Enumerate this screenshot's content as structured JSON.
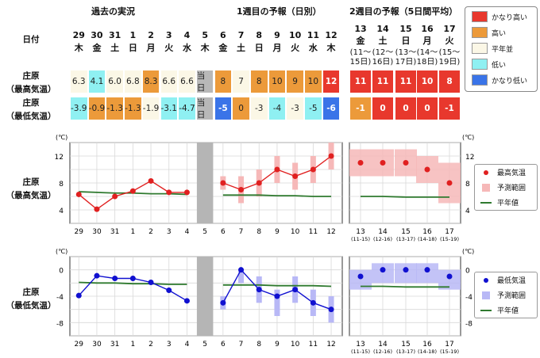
{
  "section_titles": {
    "past": "過去の実況",
    "week1": "1週目の予報（日別）",
    "week2": "2週目の予報（5日間平均）"
  },
  "row_labels": {
    "date": "日付",
    "high_l1": "庄原",
    "high_l2": "（最高気温）",
    "low_l1": "庄原",
    "low_l2": "（最低気温）"
  },
  "days": [
    {
      "d": "29",
      "w": "木"
    },
    {
      "d": "30",
      "w": "金"
    },
    {
      "d": "31",
      "w": "土"
    },
    {
      "d": "1",
      "w": "日"
    },
    {
      "d": "2",
      "w": "月"
    },
    {
      "d": "3",
      "w": "火"
    },
    {
      "d": "4",
      "w": "水"
    },
    {
      "d": "5",
      "w": "木"
    },
    {
      "d": "6",
      "w": "金"
    },
    {
      "d": "7",
      "w": "土"
    },
    {
      "d": "8",
      "w": "日"
    },
    {
      "d": "9",
      "w": "月"
    },
    {
      "d": "10",
      "w": "火"
    },
    {
      "d": "11",
      "w": "水"
    },
    {
      "d": "12",
      "w": "木"
    }
  ],
  "week2_days": [
    {
      "d": "13",
      "w": "金",
      "r1": "(11〜",
      "r2": "15日)"
    },
    {
      "d": "14",
      "w": "土",
      "r1": "(12〜",
      "r2": "16日)"
    },
    {
      "d": "15",
      "w": "日",
      "r1": "(13〜",
      "r2": "17日)"
    },
    {
      "d": "16",
      "w": "月",
      "r1": "(14〜",
      "r2": "18日)"
    },
    {
      "d": "17",
      "w": "火",
      "r1": "(15〜",
      "r2": "19日)"
    }
  ],
  "high_cells": [
    {
      "t": "6.3",
      "c": "normal"
    },
    {
      "t": "4.1",
      "c": "low"
    },
    {
      "t": "6.0",
      "c": "normal"
    },
    {
      "t": "6.8",
      "c": "normal"
    },
    {
      "t": "8.3",
      "c": "high"
    },
    {
      "t": "6.6",
      "c": "normal"
    },
    {
      "t": "6.6",
      "c": "normal"
    },
    {
      "t": "当日",
      "c": "gray"
    },
    {
      "t": "8",
      "c": "high"
    },
    {
      "t": "7",
      "c": "normal"
    },
    {
      "t": "8",
      "c": "high"
    },
    {
      "t": "10",
      "c": "high"
    },
    {
      "t": "9",
      "c": "high"
    },
    {
      "t": "10",
      "c": "high"
    },
    {
      "t": "12",
      "c": "vhigh"
    }
  ],
  "low_cells": [
    {
      "t": "-3.9",
      "c": "low"
    },
    {
      "t": "-0.9",
      "c": "high"
    },
    {
      "t": "-1.3",
      "c": "high"
    },
    {
      "t": "-1.3",
      "c": "high"
    },
    {
      "t": "-1.9",
      "c": "normal"
    },
    {
      "t": "-3.1",
      "c": "low"
    },
    {
      "t": "-4.7",
      "c": "low"
    },
    {
      "t": "当日",
      "c": "gray"
    },
    {
      "t": "-5",
      "c": "vlow"
    },
    {
      "t": "0",
      "c": "high"
    },
    {
      "t": "-3",
      "c": "normal"
    },
    {
      "t": "-4",
      "c": "low"
    },
    {
      "t": "-3",
      "c": "normal"
    },
    {
      "t": "-5",
      "c": "low"
    },
    {
      "t": "-6",
      "c": "vlow"
    }
  ],
  "high_w2": [
    {
      "t": "11",
      "c": "vhigh"
    },
    {
      "t": "11",
      "c": "vhigh"
    },
    {
      "t": "11",
      "c": "vhigh"
    },
    {
      "t": "10",
      "c": "vhigh"
    },
    {
      "t": "8",
      "c": "vhigh"
    }
  ],
  "low_w2": [
    {
      "t": "-1",
      "c": "high"
    },
    {
      "t": "0",
      "c": "vhigh"
    },
    {
      "t": "0",
      "c": "vhigh"
    },
    {
      "t": "0",
      "c": "vhigh"
    },
    {
      "t": "-1",
      "c": "vhigh"
    }
  ],
  "colors": {
    "vhigh": "#e8382d",
    "high": "#ec9a3a",
    "normal": "#fbf7e6",
    "low": "#8ff0f2",
    "vlow": "#3a74e8",
    "gray": "#b8b8b8",
    "red": "#e02020",
    "blue": "#1010d0",
    "green": "#2f7a2f",
    "pink": "#f6b8b8",
    "lav": "#b8b8f6"
  },
  "category_legend": [
    {
      "label": "かなり高い",
      "c": "vhigh"
    },
    {
      "label": "高い",
      "c": "high"
    },
    {
      "label": "平年並",
      "c": "normal"
    },
    {
      "label": "低い",
      "c": "low"
    },
    {
      "label": "かなり低い",
      "c": "vlow"
    }
  ],
  "chart_data": [
    {
      "type": "line",
      "unit": "(℃)",
      "categories": [
        "29",
        "30",
        "31",
        "1",
        "2",
        "3",
        "4",
        "5",
        "6",
        "7",
        "8",
        "9",
        "10",
        "11",
        "12"
      ],
      "ylim": [
        2,
        14
      ],
      "yticks": [
        4,
        8,
        12
      ],
      "series": [
        {
          "name": "最高気温",
          "values": [
            6.3,
            4.1,
            6.0,
            6.8,
            8.3,
            6.6,
            6.6,
            null,
            8,
            7,
            8,
            10,
            9,
            10,
            12
          ]
        },
        {
          "name": "平年値",
          "values": [
            6.7,
            6.6,
            6.5,
            6.5,
            6.4,
            6.4,
            6.3,
            null,
            6.2,
            6.2,
            6.2,
            6.1,
            6.1,
            6.0,
            6.0
          ]
        }
      ],
      "ranges": [
        null,
        null,
        null,
        null,
        null,
        null,
        null,
        null,
        [
          7,
          9
        ],
        [
          5,
          9
        ],
        [
          6,
          10
        ],
        [
          8,
          12
        ],
        [
          7,
          11
        ],
        [
          8,
          12
        ],
        [
          10,
          14
        ]
      ],
      "week2": {
        "categories": [
          "13",
          "14",
          "15",
          "16",
          "17"
        ],
        "ranges": [
          "(11-15)",
          "(12-16)",
          "(13-17)",
          "(14-18)",
          "(15-19)"
        ],
        "values": [
          11,
          11,
          11,
          10,
          8
        ],
        "bands": [
          [
            9,
            13
          ],
          [
            9,
            13
          ],
          [
            9,
            13
          ],
          [
            8,
            12
          ],
          [
            5,
            11
          ]
        ],
        "normal": [
          6.0,
          6.0,
          5.9,
          5.9,
          5.9
        ]
      },
      "legend": [
        "最高気温",
        "予測範囲",
        "平年値"
      ]
    },
    {
      "type": "line",
      "unit": "(℃)",
      "categories": [
        "29",
        "30",
        "31",
        "1",
        "2",
        "3",
        "4",
        "5",
        "6",
        "7",
        "8",
        "9",
        "10",
        "11",
        "12"
      ],
      "ylim": [
        -10,
        2
      ],
      "yticks": [
        0,
        -4,
        -8
      ],
      "series": [
        {
          "name": "最低気温",
          "values": [
            -3.9,
            -0.9,
            -1.3,
            -1.3,
            -1.9,
            -3.1,
            -4.7,
            null,
            -5,
            0,
            -3,
            -4,
            -3,
            -5,
            -6
          ]
        },
        {
          "name": "平年値",
          "values": [
            -1.9,
            -2.0,
            -2.0,
            -2.1,
            -2.1,
            -2.2,
            -2.2,
            null,
            -2.3,
            -2.3,
            -2.3,
            -2.4,
            -2.4,
            -2.4,
            -2.5
          ]
        }
      ],
      "ranges": [
        null,
        null,
        null,
        null,
        null,
        null,
        null,
        null,
        [
          -6,
          -4
        ],
        [
          -2,
          0
        ],
        [
          -5,
          -1
        ],
        [
          -7,
          -3
        ],
        [
          -5,
          -1
        ],
        [
          -7,
          -3
        ],
        [
          -8,
          -4
        ]
      ],
      "week2": {
        "categories": [
          "13",
          "14",
          "15",
          "16",
          "17"
        ],
        "ranges": [
          "(11-15)",
          "(12-16)",
          "(13-17)",
          "(14-18)",
          "(15-19)"
        ],
        "values": [
          -1,
          0,
          0,
          0,
          -1
        ],
        "bands": [
          [
            -3,
            0
          ],
          [
            -2,
            1
          ],
          [
            -2,
            1
          ],
          [
            -2,
            1
          ],
          [
            -3,
            0
          ]
        ],
        "normal": [
          -2.5,
          -2.5,
          -2.6,
          -2.6,
          -2.6
        ]
      },
      "legend": [
        "最低気温",
        "予測範囲",
        "平年値"
      ]
    }
  ]
}
